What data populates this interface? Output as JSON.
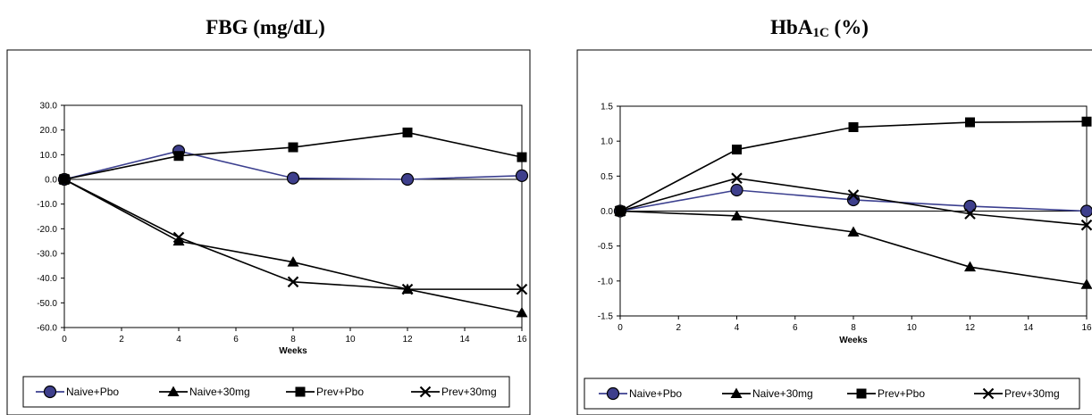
{
  "charts": [
    {
      "title": "FBG (mg/dL)",
      "title_main": "FBG (mg/dL)",
      "title_sub": "",
      "title_tail": "",
      "xlabel": "Weeks",
      "y_ticks": [
        "30.0",
        "20.0",
        "10.0",
        "0.0",
        "-10.0",
        "-20.0",
        "-30.0",
        "-40.0",
        "-50.0",
        "-60.0"
      ],
      "x_ticks": [
        "0",
        "2",
        "4",
        "6",
        "8",
        "10",
        "12",
        "14",
        "16"
      ],
      "legend": [
        "Naive+Pbo",
        "Naive+30mg",
        "Prev+Pbo",
        "Prev+30mg"
      ]
    },
    {
      "title": "HbA1C (%)",
      "title_main": "HbA",
      "title_sub": "1C",
      "title_tail": " (%)",
      "xlabel": "Weeks",
      "y_ticks": [
        "1.5",
        "1.0",
        "0.5",
        "0.0",
        "-0.5",
        "-1.0",
        "-1.5"
      ],
      "x_ticks": [
        "0",
        "2",
        "4",
        "6",
        "8",
        "10",
        "12",
        "14",
        "16"
      ],
      "legend": [
        "Naive+Pbo",
        "Naive+30mg",
        "Prev+Pbo",
        "Prev+30mg"
      ]
    }
  ],
  "chart_data": [
    {
      "type": "line",
      "title": "FBG (mg/dL)",
      "xlabel": "Weeks",
      "ylabel": "",
      "xlim": [
        0,
        16
      ],
      "ylim": [
        -60,
        30
      ],
      "grid": false,
      "legend_position": "bottom",
      "x": [
        0,
        4,
        8,
        12,
        16
      ],
      "series": [
        {
          "name": "Naive+Pbo",
          "marker": "circle",
          "color": "#3b3f8f",
          "values": [
            0,
            11.5,
            0.5,
            0,
            1.5
          ]
        },
        {
          "name": "Naive+30mg",
          "marker": "triangle",
          "color": "#000000",
          "values": [
            0,
            -25,
            -33.5,
            -44.5,
            -54
          ]
        },
        {
          "name": "Prev+Pbo",
          "marker": "square",
          "color": "#000000",
          "values": [
            0,
            9.5,
            13,
            19,
            9
          ]
        },
        {
          "name": "Prev+30mg",
          "marker": "x",
          "color": "#000000",
          "values": [
            0,
            -23.5,
            -41.5,
            -44.5,
            -44.5
          ]
        }
      ]
    },
    {
      "type": "line",
      "title": "HbA1C (%)",
      "xlabel": "Weeks",
      "ylabel": "",
      "xlim": [
        0,
        16
      ],
      "ylim": [
        -1.5,
        1.5
      ],
      "grid": false,
      "legend_position": "bottom",
      "x": [
        0,
        4,
        8,
        12,
        16
      ],
      "series": [
        {
          "name": "Naive+Pbo",
          "marker": "circle",
          "color": "#3b3f8f",
          "values": [
            0,
            0.3,
            0.16,
            0.07,
            0.0
          ]
        },
        {
          "name": "Naive+30mg",
          "marker": "triangle",
          "color": "#000000",
          "values": [
            0,
            -0.07,
            -0.3,
            -0.8,
            -1.05
          ]
        },
        {
          "name": "Prev+Pbo",
          "marker": "square",
          "color": "#000000",
          "values": [
            0,
            0.88,
            1.2,
            1.27,
            1.28
          ]
        },
        {
          "name": "Prev+30mg",
          "marker": "x",
          "color": "#000000",
          "values": [
            0,
            0.47,
            0.23,
            -0.04,
            -0.2
          ]
        }
      ]
    }
  ]
}
